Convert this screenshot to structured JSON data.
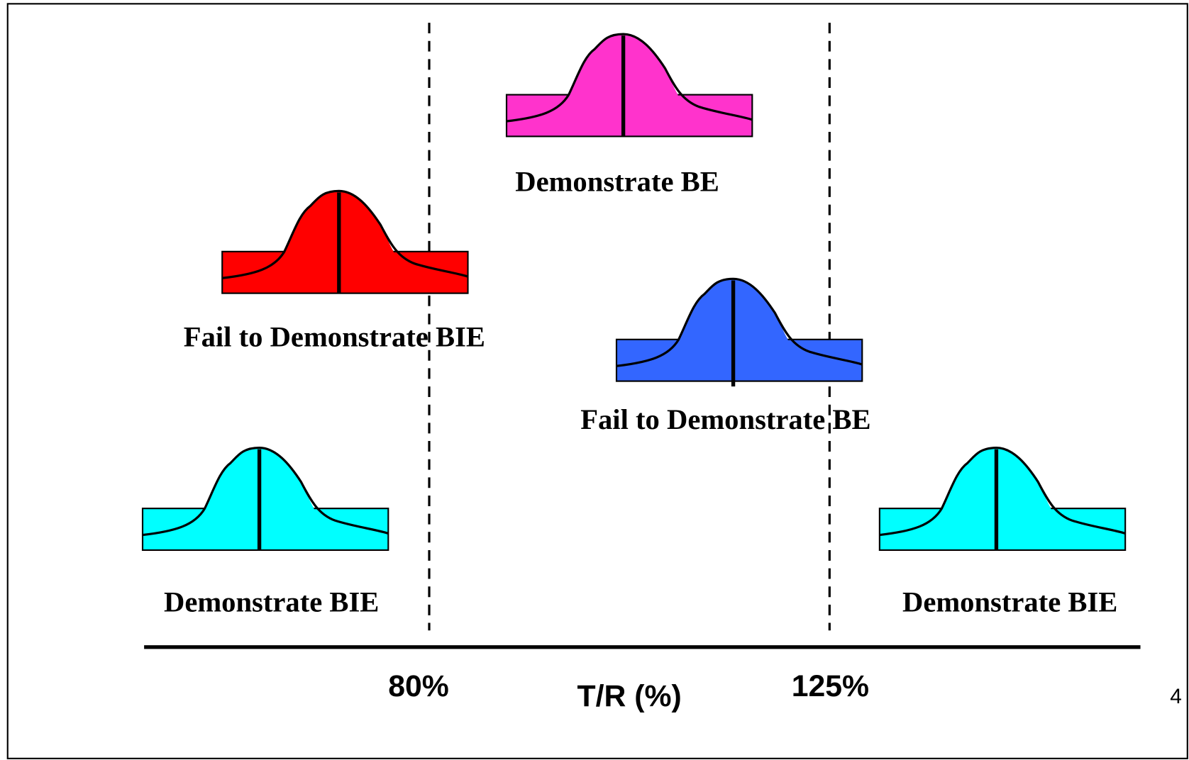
{
  "distributions": [
    {
      "label": "Demonstrate BE"
    },
    {
      "label": "Fail to Demonstrate BIE"
    },
    {
      "label": "Fail to Demonstrate BE"
    },
    {
      "label": "Demonstrate BIE"
    },
    {
      "label": "Demonstrate BIE"
    }
  ],
  "axis": {
    "ticks": [
      "80%",
      "125%"
    ],
    "title": "T/R (%)"
  },
  "page_number": "4"
}
